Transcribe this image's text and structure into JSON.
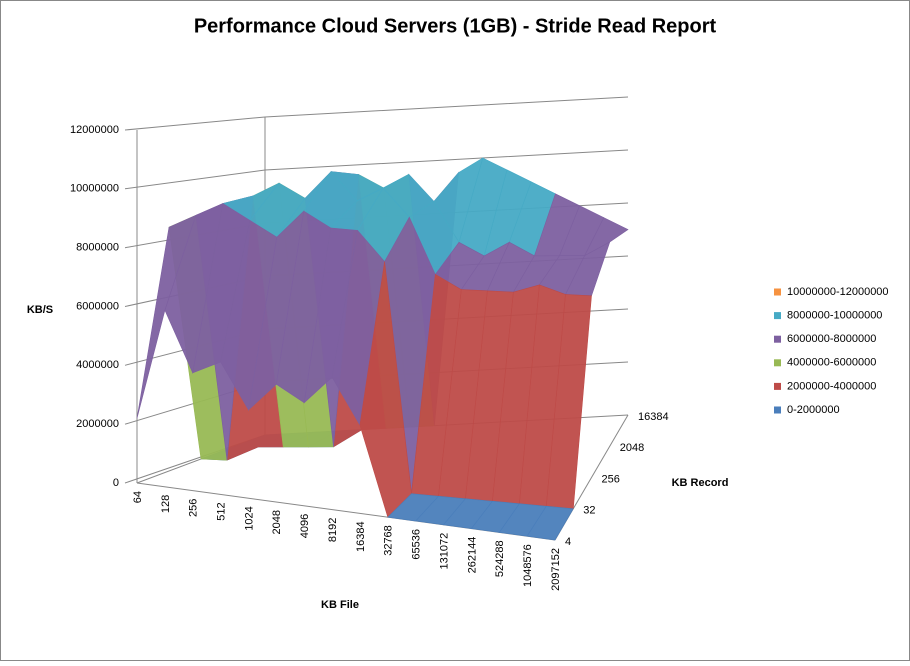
{
  "chart_data": {
    "type": "surface",
    "title": "Performance Cloud Servers (1GB) - Stride Read Report",
    "y_label": "KB/S",
    "x_label": "KB File",
    "z_label": "KB Record",
    "categories": [
      "64",
      "128",
      "256",
      "512",
      "1024",
      "2048",
      "4096",
      "8192",
      "16384",
      "32768",
      "65536",
      "131072",
      "262144",
      "524288",
      "1048576",
      "2097152"
    ],
    "depth_categories": [
      "4",
      "32",
      "256",
      "2048",
      "16384"
    ],
    "values": [
      [
        2200000,
        6000000,
        4000000,
        4500000,
        3000000,
        4000000,
        3500000,
        4500000,
        3000000,
        0,
        0,
        0,
        0,
        0,
        0,
        0
      ],
      [
        8500000,
        9000000,
        9500000,
        9000000,
        8500000,
        9500000,
        9000000,
        9000000,
        8000000,
        0,
        0,
        0,
        0,
        0,
        0,
        0
      ],
      [
        0,
        0,
        9500000,
        10000000,
        9500000,
        10500000,
        9500000,
        10000000,
        9000000,
        7000000,
        6500000,
        6500000,
        6500000,
        6800000,
        6500000,
        6500000
      ],
      [
        0,
        0,
        0,
        0,
        0,
        10000000,
        9500000,
        10000000,
        9000000,
        7500000,
        7000000,
        7500000,
        7000000,
        7000000,
        7000000,
        7500000
      ],
      [
        0,
        0,
        0,
        0,
        0,
        0,
        0,
        0,
        9500000,
        10000000,
        9500000,
        9000000,
        8500000,
        8000000,
        7500000,
        7000000
      ]
    ],
    "bands": [
      {
        "name": "0-2000000",
        "color": "#4a7ebb"
      },
      {
        "name": "2000000-4000000",
        "color": "#be4b48"
      },
      {
        "name": "4000000-6000000",
        "color": "#98b954"
      },
      {
        "name": "6000000-8000000",
        "color": "#7d60a0"
      },
      {
        "name": "8000000-10000000",
        "color": "#46aac5"
      },
      {
        "name": "10000000-12000000",
        "color": "#f69240"
      }
    ],
    "ylim": [
      0,
      12000000
    ],
    "yticks": [
      0,
      2000000,
      4000000,
      6000000,
      8000000,
      10000000,
      12000000
    ],
    "grid": true
  }
}
